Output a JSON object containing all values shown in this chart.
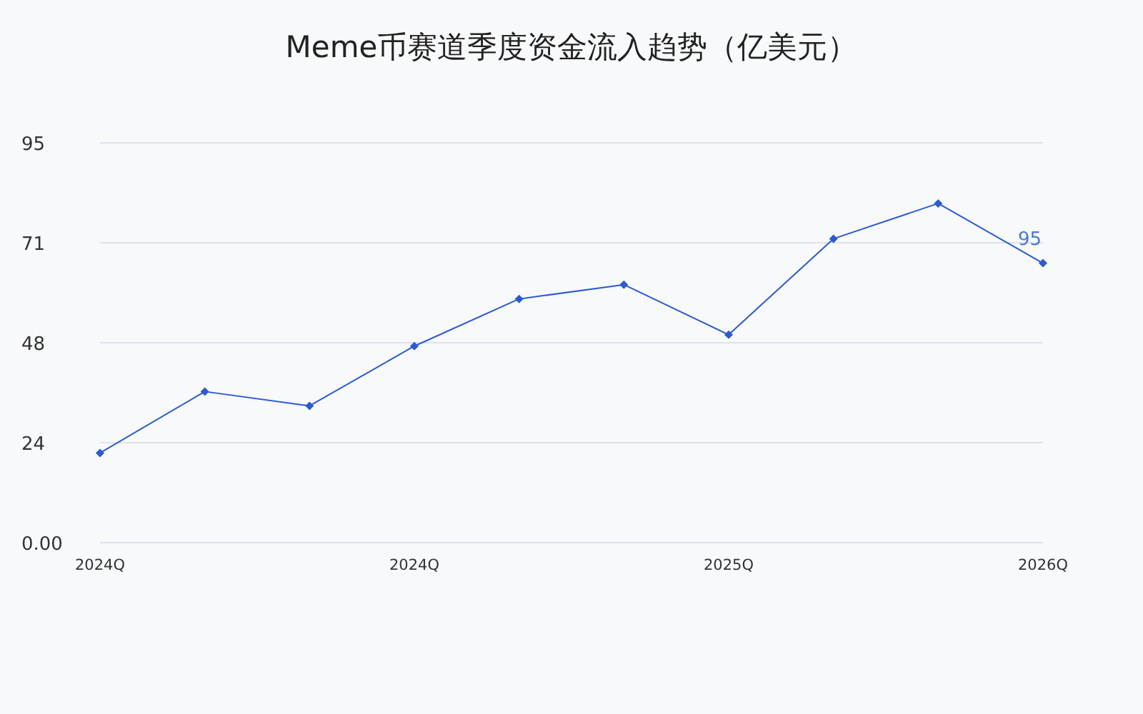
{
  "chart_data": {
    "type": "line",
    "title": "Meme币赛道季度资金流入趋势（亿美元）",
    "categories": [
      "2024Q",
      null,
      null,
      "2024Q",
      null,
      null,
      "2025Q",
      null,
      null,
      "2026Q"
    ],
    "series": [
      {
        "color": "#2a5bd7",
        "values": [
          21.3,
          35.9,
          32.5,
          46.7,
          57.9,
          61.3,
          49.4,
          72.2,
          80.6,
          66.4
        ]
      }
    ],
    "ylim": [
      0,
      95
    ],
    "yticks": [
      {
        "value": 0,
        "label": "0.00"
      },
      {
        "value": 23.75,
        "label": "24"
      },
      {
        "value": 47.5,
        "label": "48"
      },
      {
        "value": 71.25,
        "label": "71"
      },
      95
    ],
    "grid": "y",
    "marker": "diamond",
    "line_style": "solid",
    "annotations": [
      {
        "text": "95",
        "x": "2026Q",
        "y": 66.4
      }
    ]
  }
}
